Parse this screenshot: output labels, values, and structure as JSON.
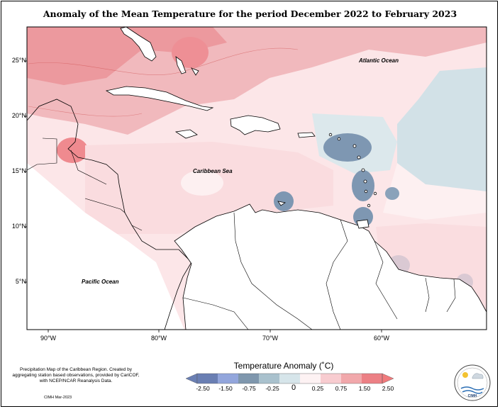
{
  "title": "Anomaly of the Mean Temperature for the period December 2022 to February 2023",
  "axes": {
    "lat_labels": [
      "25°N",
      "20°N",
      "15°N",
      "10°N",
      "5°N"
    ],
    "lon_labels": [
      "90°W",
      "80°W",
      "70°W",
      "60°W"
    ]
  },
  "ocean_labels": {
    "atlantic": "Atlantic Ocean",
    "caribbean": "Caribbean Sea",
    "pacific": "Pacific Ocean"
  },
  "legend": {
    "title": "Temperature Anomaly (˚C)",
    "ticks": [
      "-2.50",
      "-1.50",
      "-0.75",
      "-0.25",
      "0",
      "0.25",
      "0.75",
      "1.50",
      "2.50"
    ],
    "colors": [
      "#6a7fb3",
      "#93a6dc",
      "#7f97ad",
      "#a9c1cd",
      "#d6e5ea",
      "#fdf2f3",
      "#f8ccd0",
      "#f1a8ab",
      "#ec8085",
      "#f07a7c"
    ]
  },
  "credit": "Precipitation Map of the Caribbean Region. Created by aggregating station based observations, provided by CariCOF, with NCEP/NCAR Reanalysis Data.",
  "stamp": "CIMH Mar-2023",
  "logo_text": "CIMH"
}
